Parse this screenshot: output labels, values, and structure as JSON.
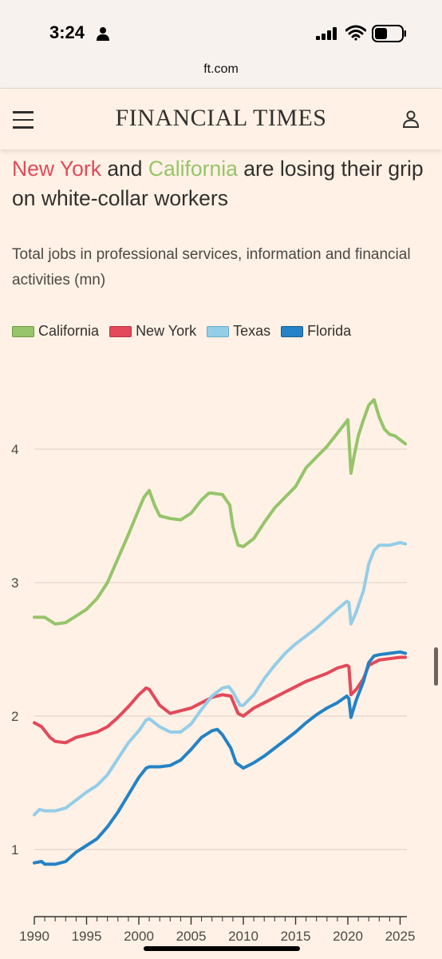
{
  "status_bar": {
    "time": "3:24",
    "url": "ft.com"
  },
  "header": {
    "logo": "FINANCIAL TIMES",
    "menu_icon": "hamburger-menu-icon",
    "user_icon": "user-icon"
  },
  "headline": {
    "part1": "New York",
    "part2": " and ",
    "part3": "California",
    "part4": " are losing their grip on white-collar workers"
  },
  "colors": {
    "california": "#96c46a",
    "new_york": "#e3495a",
    "texas": "#94cde8",
    "florida": "#2482c5",
    "text": "#33302e"
  },
  "chart_data": {
    "type": "line",
    "title": "",
    "subtitle": "Total jobs in professional services, information and financial activities (mn)",
    "xlabel": "",
    "ylabel": "",
    "xlim": [
      1990,
      2025.8
    ],
    "ylim": [
      0.5,
      4.8
    ],
    "x_ticks": [
      "1990",
      "1995",
      "2000",
      "2005",
      "2010",
      "2015",
      "2020",
      "2025"
    ],
    "y_ticks": [
      "1",
      "2",
      "3",
      "4"
    ],
    "legend_position": "top-left",
    "series": [
      {
        "name": "California",
        "color": "#96c46a",
        "points": [
          [
            1990,
            2.74
          ],
          [
            1991,
            2.74
          ],
          [
            1992,
            2.69
          ],
          [
            1993,
            2.7
          ],
          [
            1994,
            2.75
          ],
          [
            1995,
            2.8
          ],
          [
            1996,
            2.88
          ],
          [
            1997,
            3.0
          ],
          [
            1998,
            3.18
          ],
          [
            1999,
            3.36
          ],
          [
            2000,
            3.55
          ],
          [
            2000.5,
            3.64
          ],
          [
            2001,
            3.69
          ],
          [
            2001.5,
            3.58
          ],
          [
            2002,
            3.5
          ],
          [
            2003,
            3.48
          ],
          [
            2004,
            3.47
          ],
          [
            2005,
            3.52
          ],
          [
            2006,
            3.62
          ],
          [
            2006.7,
            3.67
          ],
          [
            2007,
            3.67
          ],
          [
            2008,
            3.66
          ],
          [
            2008.7,
            3.58
          ],
          [
            2009,
            3.42
          ],
          [
            2009.5,
            3.28
          ],
          [
            2010,
            3.27
          ],
          [
            2011,
            3.33
          ],
          [
            2012,
            3.45
          ],
          [
            2013,
            3.56
          ],
          [
            2014,
            3.64
          ],
          [
            2015,
            3.72
          ],
          [
            2016,
            3.86
          ],
          [
            2017,
            3.94
          ],
          [
            2018,
            4.02
          ],
          [
            2019,
            4.12
          ],
          [
            2019.8,
            4.2
          ],
          [
            2020,
            4.22
          ],
          [
            2020.3,
            3.82
          ],
          [
            2020.6,
            3.95
          ],
          [
            2021,
            4.1
          ],
          [
            2021.5,
            4.22
          ],
          [
            2022,
            4.33
          ],
          [
            2022.5,
            4.37
          ],
          [
            2023,
            4.24
          ],
          [
            2023.5,
            4.15
          ],
          [
            2024,
            4.11
          ],
          [
            2024.5,
            4.1
          ],
          [
            2025,
            4.07
          ],
          [
            2025.5,
            4.04
          ]
        ]
      },
      {
        "name": "New York",
        "color": "#e3495a",
        "points": [
          [
            1990,
            1.95
          ],
          [
            1990.7,
            1.92
          ],
          [
            1991.5,
            1.84
          ],
          [
            1992,
            1.81
          ],
          [
            1993,
            1.8
          ],
          [
            1994,
            1.84
          ],
          [
            1995,
            1.86
          ],
          [
            1996,
            1.88
          ],
          [
            1997,
            1.92
          ],
          [
            1998,
            1.99
          ],
          [
            1999,
            2.07
          ],
          [
            2000,
            2.16
          ],
          [
            2000.7,
            2.21
          ],
          [
            2001,
            2.2
          ],
          [
            2002,
            2.08
          ],
          [
            2003,
            2.02
          ],
          [
            2004,
            2.04
          ],
          [
            2005,
            2.06
          ],
          [
            2006,
            2.1
          ],
          [
            2007,
            2.14
          ],
          [
            2008,
            2.16
          ],
          [
            2008.8,
            2.15
          ],
          [
            2009.5,
            2.02
          ],
          [
            2010,
            2.0
          ],
          [
            2011,
            2.06
          ],
          [
            2012,
            2.1
          ],
          [
            2013,
            2.14
          ],
          [
            2014,
            2.18
          ],
          [
            2015,
            2.22
          ],
          [
            2016,
            2.26
          ],
          [
            2017,
            2.29
          ],
          [
            2018,
            2.32
          ],
          [
            2019,
            2.36
          ],
          [
            2019.9,
            2.38
          ],
          [
            2020.1,
            2.37
          ],
          [
            2020.3,
            2.16
          ],
          [
            2020.8,
            2.2
          ],
          [
            2021.5,
            2.28
          ],
          [
            2022,
            2.38
          ],
          [
            2023,
            2.42
          ],
          [
            2024,
            2.43
          ],
          [
            2025,
            2.44
          ],
          [
            2025.5,
            2.44
          ]
        ]
      },
      {
        "name": "Texas",
        "color": "#94cde8",
        "points": [
          [
            1990,
            1.26
          ],
          [
            1990.5,
            1.3
          ],
          [
            1991,
            1.29
          ],
          [
            1992,
            1.29
          ],
          [
            1993,
            1.31
          ],
          [
            1994,
            1.37
          ],
          [
            1995,
            1.43
          ],
          [
            1996,
            1.48
          ],
          [
            1997,
            1.56
          ],
          [
            1998,
            1.68
          ],
          [
            1999,
            1.8
          ],
          [
            2000,
            1.89
          ],
          [
            2000.7,
            1.97
          ],
          [
            2001,
            1.98
          ],
          [
            2002,
            1.92
          ],
          [
            2003,
            1.88
          ],
          [
            2004,
            1.88
          ],
          [
            2005,
            1.94
          ],
          [
            2006,
            2.05
          ],
          [
            2007,
            2.15
          ],
          [
            2008,
            2.21
          ],
          [
            2008.6,
            2.22
          ],
          [
            2009,
            2.18
          ],
          [
            2009.7,
            2.08
          ],
          [
            2010,
            2.08
          ],
          [
            2011,
            2.16
          ],
          [
            2012,
            2.28
          ],
          [
            2013,
            2.38
          ],
          [
            2014,
            2.47
          ],
          [
            2015,
            2.54
          ],
          [
            2016,
            2.6
          ],
          [
            2017,
            2.66
          ],
          [
            2018,
            2.73
          ],
          [
            2019,
            2.8
          ],
          [
            2019.9,
            2.86
          ],
          [
            2020.1,
            2.85
          ],
          [
            2020.3,
            2.69
          ],
          [
            2020.8,
            2.78
          ],
          [
            2021.5,
            2.94
          ],
          [
            2022,
            3.14
          ],
          [
            2022.5,
            3.24
          ],
          [
            2023,
            3.28
          ],
          [
            2024,
            3.28
          ],
          [
            2025,
            3.3
          ],
          [
            2025.5,
            3.29
          ]
        ]
      },
      {
        "name": "Florida",
        "color": "#2482c5",
        "points": [
          [
            1990,
            0.9
          ],
          [
            1990.7,
            0.91
          ],
          [
            1991,
            0.89
          ],
          [
            1992,
            0.89
          ],
          [
            1993,
            0.91
          ],
          [
            1994,
            0.98
          ],
          [
            1995,
            1.03
          ],
          [
            1996,
            1.08
          ],
          [
            1997,
            1.17
          ],
          [
            1998,
            1.28
          ],
          [
            1999,
            1.41
          ],
          [
            2000,
            1.54
          ],
          [
            2000.7,
            1.61
          ],
          [
            2001,
            1.62
          ],
          [
            2002,
            1.62
          ],
          [
            2003,
            1.63
          ],
          [
            2004,
            1.67
          ],
          [
            2005,
            1.75
          ],
          [
            2006,
            1.84
          ],
          [
            2007,
            1.89
          ],
          [
            2007.5,
            1.9
          ],
          [
            2008,
            1.86
          ],
          [
            2008.8,
            1.76
          ],
          [
            2009.3,
            1.65
          ],
          [
            2010,
            1.61
          ],
          [
            2011,
            1.65
          ],
          [
            2012,
            1.7
          ],
          [
            2013,
            1.76
          ],
          [
            2014,
            1.82
          ],
          [
            2015,
            1.88
          ],
          [
            2016,
            1.95
          ],
          [
            2017,
            2.01
          ],
          [
            2018,
            2.06
          ],
          [
            2019,
            2.1
          ],
          [
            2019.9,
            2.15
          ],
          [
            2020.1,
            2.13
          ],
          [
            2020.3,
            1.99
          ],
          [
            2020.8,
            2.12
          ],
          [
            2021.5,
            2.26
          ],
          [
            2022,
            2.4
          ],
          [
            2022.5,
            2.45
          ],
          [
            2023,
            2.46
          ],
          [
            2024,
            2.47
          ],
          [
            2025,
            2.48
          ],
          [
            2025.5,
            2.47
          ]
        ]
      }
    ]
  }
}
